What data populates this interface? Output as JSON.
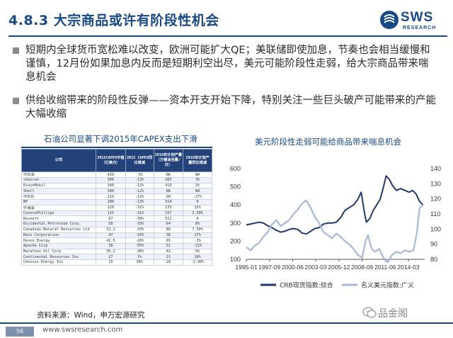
{
  "header": {
    "title": "4.8.3 大宗商品或许有阶段性机会",
    "logo_text": "SWS",
    "logo_sub": "RESEARCH"
  },
  "bullets": [
    "短期内全球货币宽松难以改变，欧洲可能扩大QE；美联储即使加息，节奏也会相当缓慢和谨慎，12月份如果加息内反而是短期利空出尽，美元可能阶段性走弱，给大宗商品带来喘息机会",
    "供给收缩带来的阶段性反弹——资本开支开始下降，特别关注一些巨头破产可能带来的产能大幅收缩"
  ],
  "table": {
    "title": "石油公司显著下调2015年CAPEX支出下滑",
    "headers": [
      "公司",
      "2015CAPEX中值（亿美元）",
      "2015 CAPEX同比增减",
      "2016年计划产量（万桶油当量/日）",
      "2016年计划产量同比增减"
    ],
    "rows": [
      [
        "中石油",
        "439",
        "-3%",
        "NA",
        "NA"
      ],
      [
        "chevron",
        "300",
        "-13%",
        "265",
        "3%"
      ],
      [
        "ExxonMobil",
        "340",
        "-12%",
        "410",
        "2%"
      ],
      [
        "Shell",
        "300",
        "-12%",
        "NA",
        "NA"
      ],
      [
        "中石化",
        "219",
        "-12%",
        "98",
        "-27%"
      ],
      [
        "BP",
        "200",
        "-13%",
        "314",
        "0"
      ],
      [
        "中海油",
        "120",
        "-31%",
        "133",
        "15%"
      ],
      [
        "ConocoPhillips",
        "115",
        "-31%",
        "157",
        "2.50%"
      ],
      [
        "Rosneft",
        "97",
        "-30%",
        "511",
        "0"
      ],
      [
        "Occidental Petroleum Corp.",
        "58",
        "-33%",
        "64",
        "8%"
      ],
      [
        "Canadian Natural Resources Ltd",
        "52.2",
        "-33%",
        "86",
        "7.50%"
      ],
      [
        "Hess Corporation",
        "47",
        "-16%",
        "36",
        "17%"
      ],
      [
        "Devon Energy",
        "41.5",
        "-20%",
        "65",
        "-3%"
      ],
      [
        "Apache Corp",
        "38",
        "-55%",
        "51",
        "-21%"
      ],
      [
        "Marathon Oil Corp",
        "35.2",
        "-30%",
        "42",
        "6%"
      ],
      [
        "Continental Resources Inc",
        "27",
        "1%",
        "21",
        "18%"
      ],
      [
        "Cenovus Energy Inc",
        "15",
        "38%",
        "28",
        "-2.90%"
      ]
    ]
  },
  "source_note": "资料来源：Wind，申万宏源研究",
  "chart_data": {
    "type": "line",
    "title": "美元阶段性走弱可能给商品带来喘息机会",
    "x_ticks": [
      "1995-01",
      "1997-09",
      "2000-06",
      "2003-03",
      "2005-12",
      "2008-09",
      "2011-06",
      "2014-03"
    ],
    "y_left": {
      "ticks": [
        100,
        200,
        300,
        400,
        500,
        600
      ],
      "range": [
        100,
        600
      ]
    },
    "y_right": {
      "ticks": [
        80,
        90,
        100,
        110,
        120,
        130,
        140
      ],
      "range": [
        80,
        140
      ]
    },
    "series": [
      {
        "name": "CRB现货指数:综合",
        "axis": "left",
        "color": "#1f3a6e",
        "points": [
          [
            1995.0,
            290
          ],
          [
            1995.5,
            295
          ],
          [
            1996.0,
            300
          ],
          [
            1996.5,
            305
          ],
          [
            1997.0,
            300
          ],
          [
            1997.5,
            285
          ],
          [
            1998.0,
            275
          ],
          [
            1998.5,
            260
          ],
          [
            1999.0,
            250
          ],
          [
            1999.5,
            255
          ],
          [
            2000.0,
            265
          ],
          [
            2000.5,
            270
          ],
          [
            2001.0,
            265
          ],
          [
            2001.5,
            245
          ],
          [
            2002.0,
            240
          ],
          [
            2002.5,
            255
          ],
          [
            2003.0,
            270
          ],
          [
            2003.5,
            275
          ],
          [
            2004.0,
            295
          ],
          [
            2004.5,
            300
          ],
          [
            2005.0,
            300
          ],
          [
            2005.5,
            305
          ],
          [
            2006.0,
            330
          ],
          [
            2006.5,
            370
          ],
          [
            2007.0,
            385
          ],
          [
            2007.5,
            400
          ],
          [
            2008.0,
            430
          ],
          [
            2008.4,
            470
          ],
          [
            2008.8,
            350
          ],
          [
            2009.0,
            305
          ],
          [
            2009.4,
            325
          ],
          [
            2009.8,
            370
          ],
          [
            2010.2,
            400
          ],
          [
            2010.6,
            430
          ],
          [
            2011.0,
            500
          ],
          [
            2011.3,
            560
          ],
          [
            2011.7,
            540
          ],
          [
            2012.0,
            510
          ],
          [
            2012.5,
            480
          ],
          [
            2013.0,
            490
          ],
          [
            2013.5,
            480
          ],
          [
            2014.0,
            470
          ],
          [
            2014.4,
            480
          ],
          [
            2014.8,
            460
          ],
          [
            2015.2,
            420
          ],
          [
            2015.6,
            400
          ]
        ]
      },
      {
        "name": "名义美元指数:广义",
        "axis": "right",
        "color": "#a7b8d6",
        "points": [
          [
            1995.0,
            88
          ],
          [
            1995.5,
            86
          ],
          [
            1996.0,
            89
          ],
          [
            1996.5,
            91
          ],
          [
            1997.0,
            95
          ],
          [
            1997.5,
            98
          ],
          [
            1998.0,
            103
          ],
          [
            1998.5,
            106
          ],
          [
            1999.0,
            102
          ],
          [
            1999.5,
            104
          ],
          [
            2000.0,
            106
          ],
          [
            2000.5,
            110
          ],
          [
            2001.0,
            113
          ],
          [
            2001.5,
            117
          ],
          [
            2002.0,
            119
          ],
          [
            2002.5,
            114
          ],
          [
            2003.0,
            108
          ],
          [
            2003.5,
            104
          ],
          [
            2004.0,
            98
          ],
          [
            2004.5,
            96
          ],
          [
            2005.0,
            94
          ],
          [
            2005.5,
            97
          ],
          [
            2006.0,
            95
          ],
          [
            2006.5,
            92
          ],
          [
            2007.0,
            90
          ],
          [
            2007.5,
            87
          ],
          [
            2008.0,
            83
          ],
          [
            2008.5,
            81
          ],
          [
            2008.9,
            92
          ],
          [
            2009.2,
            96
          ],
          [
            2009.6,
            87
          ],
          [
            2010.0,
            85
          ],
          [
            2010.5,
            87
          ],
          [
            2011.0,
            81
          ],
          [
            2011.5,
            78
          ],
          [
            2012.0,
            83
          ],
          [
            2012.5,
            85
          ],
          [
            2013.0,
            84
          ],
          [
            2013.5,
            86
          ],
          [
            2014.0,
            85
          ],
          [
            2014.5,
            86
          ],
          [
            2014.9,
            98
          ],
          [
            2015.2,
            114
          ],
          [
            2015.6,
            116
          ]
        ]
      }
    ],
    "legend": [
      "CRB现货指数:综合",
      "名义美元指数:广义"
    ]
  },
  "footer": {
    "page": "56",
    "url": "www.swsresearch.com",
    "watermark": "品金阁"
  }
}
